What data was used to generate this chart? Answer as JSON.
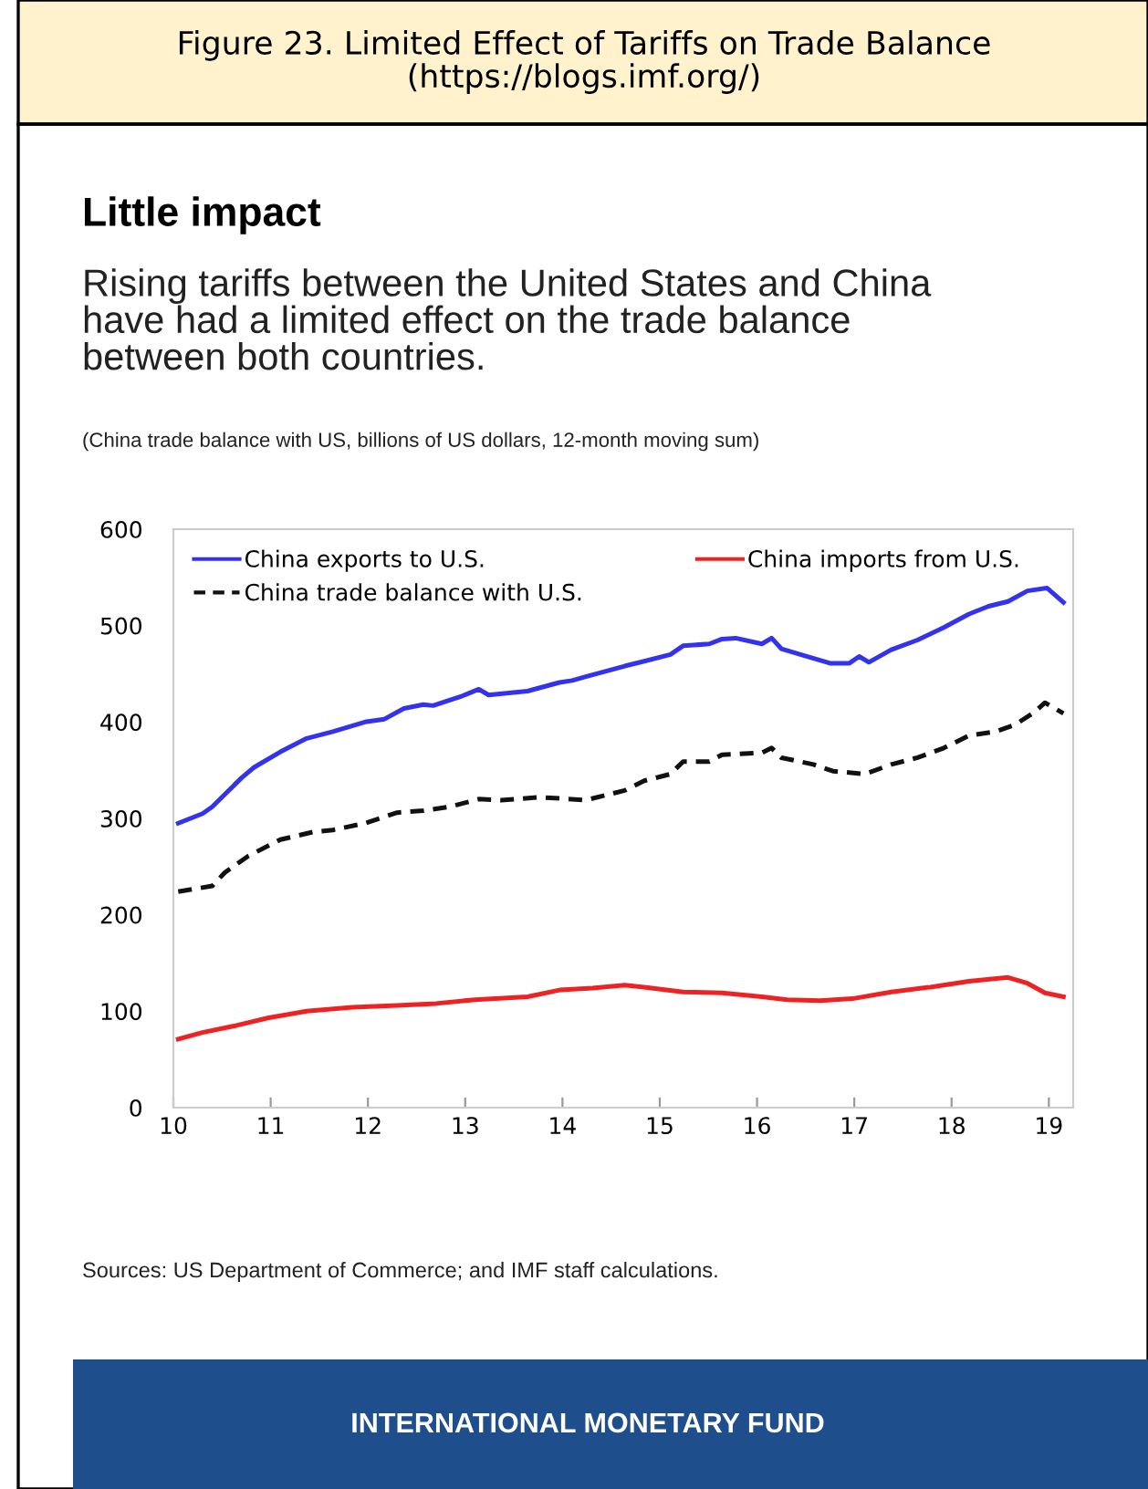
{
  "chart_data": {
    "type": "line",
    "title": "Figure 23. Limited Effect of Tariffs on Trade Balance\n(https://blogs.imf.org/)",
    "subtitle": "Little impact",
    "annotations": [
      "Rising tariffs between the United States and China\nhave had a limited effect on the trade balance\nbetween both countries.",
      "(China trade balance with US, billions of US dollars, 12-month moving sum)",
      "Sources: US Department of Commerce; and IMF staff calculations.",
      "INTERNATIONAL MONETARY FUND"
    ],
    "xlim": [
      10,
      19.25
    ],
    "xticks": [
      10,
      11,
      12,
      13,
      14,
      15,
      16,
      17,
      18,
      19
    ],
    "ylim": [
      0,
      600
    ],
    "yticks": [
      0,
      100,
      200,
      300,
      400,
      500,
      600
    ],
    "grid": false,
    "legend": "top left",
    "series": [
      {
        "name": "China exports to U.S.",
        "color": "#3333ee",
        "line_style": "solid",
        "x": [
          10.05,
          10.3,
          10.4,
          10.53,
          10.7,
          10.83,
          11.1,
          11.37,
          11.64,
          11.97,
          12.17,
          12.37,
          12.57,
          12.67,
          12.97,
          13.14,
          13.24,
          13.64,
          13.97,
          14.1,
          14.24,
          14.64,
          14.84,
          15.11,
          15.24,
          15.51,
          15.64,
          15.78,
          16.05,
          16.15,
          16.25,
          16.51,
          16.75,
          16.95,
          17.05,
          17.15,
          17.38,
          17.65,
          17.92,
          18.18,
          18.38,
          18.58,
          18.78,
          18.98,
          19.15
        ],
        "values": [
          295,
          305,
          312,
          325,
          342,
          353,
          369,
          383,
          390,
          400,
          403,
          414,
          418,
          417,
          427,
          434,
          428,
          432,
          441,
          443,
          447,
          458,
          463,
          470,
          479,
          481,
          486,
          487,
          481,
          487,
          476,
          468,
          461,
          461,
          468,
          462,
          475,
          485,
          498,
          512,
          520,
          525,
          536,
          539,
          524
        ]
      },
      {
        "name": "China trade balance with U.S.",
        "color": "#111111",
        "line_style": "dashed",
        "x": [
          10.05,
          10.4,
          10.53,
          10.77,
          11.1,
          11.44,
          11.64,
          11.97,
          12.3,
          12.57,
          12.84,
          13.14,
          13.37,
          13.77,
          14.24,
          14.64,
          14.84,
          15.11,
          15.24,
          15.51,
          15.64,
          16.05,
          16.15,
          16.25,
          16.58,
          16.78,
          17.11,
          17.38,
          17.65,
          17.92,
          18.18,
          18.45,
          18.65,
          18.85,
          18.96,
          19.15
        ],
        "values": [
          224,
          230,
          244,
          261,
          278,
          286,
          288,
          295,
          306,
          308,
          312,
          320,
          319,
          322,
          319,
          329,
          339,
          346,
          359,
          359,
          366,
          368,
          373,
          363,
          356,
          349,
          346,
          356,
          363,
          373,
          386,
          390,
          397,
          410,
          420,
          409
        ]
      },
      {
        "name": "China imports from U.S.",
        "color": "#ee2222",
        "line_style": "solid",
        "x": [
          10.05,
          10.3,
          10.64,
          10.97,
          11.37,
          11.84,
          12.3,
          12.7,
          13.1,
          13.64,
          13.97,
          14.31,
          14.64,
          14.84,
          15.24,
          15.64,
          16.05,
          16.31,
          16.65,
          16.98,
          17.38,
          17.78,
          18.18,
          18.58,
          18.78,
          18.96,
          19.15
        ],
        "values": [
          71,
          78,
          85,
          93,
          100,
          104,
          106,
          108,
          112,
          115,
          122,
          124,
          127,
          125,
          120,
          119,
          115,
          112,
          111,
          113,
          120,
          125,
          131,
          135,
          129,
          119,
          115
        ]
      }
    ]
  }
}
